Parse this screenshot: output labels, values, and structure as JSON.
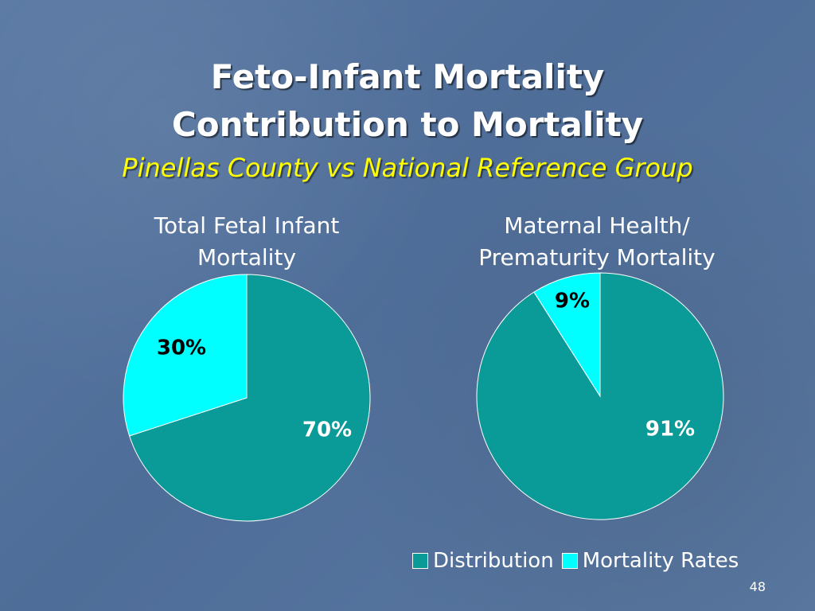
{
  "slide": {
    "title_line1": "Feto-Infant Mortality",
    "title_line2": "Contribution to Mortality",
    "subtitle": "Pinellas County vs National Reference Group",
    "page_number": "48"
  },
  "legend": {
    "items": [
      {
        "label": "Distribution",
        "color": "#0a9a98"
      },
      {
        "label": "Mortality Rates",
        "color": "#00ffff"
      }
    ]
  },
  "chart_data": [
    {
      "type": "pie",
      "title": "Total Fetal Infant Mortality",
      "title_lines": [
        "Total Fetal Infant",
        "Mortality"
      ],
      "slices": [
        {
          "label": "Distribution",
          "value": 70,
          "label_text": "70%",
          "color": "#0a9a98"
        },
        {
          "label": "Mortality Rates",
          "value": 30,
          "label_text": "30%",
          "color": "#00ffff"
        }
      ],
      "legend_position": "bottom-right"
    },
    {
      "type": "pie",
      "title": "Maternal Health/ Prematurity Mortality",
      "title_lines": [
        "Maternal Health/",
        "Prematurity Mortality"
      ],
      "slices": [
        {
          "label": "Distribution",
          "value": 91,
          "label_text": "91%",
          "color": "#0a9a98"
        },
        {
          "label": "Mortality Rates",
          "value": 9,
          "label_text": "9%",
          "color": "#00ffff"
        }
      ],
      "legend_position": "bottom-right"
    }
  ]
}
